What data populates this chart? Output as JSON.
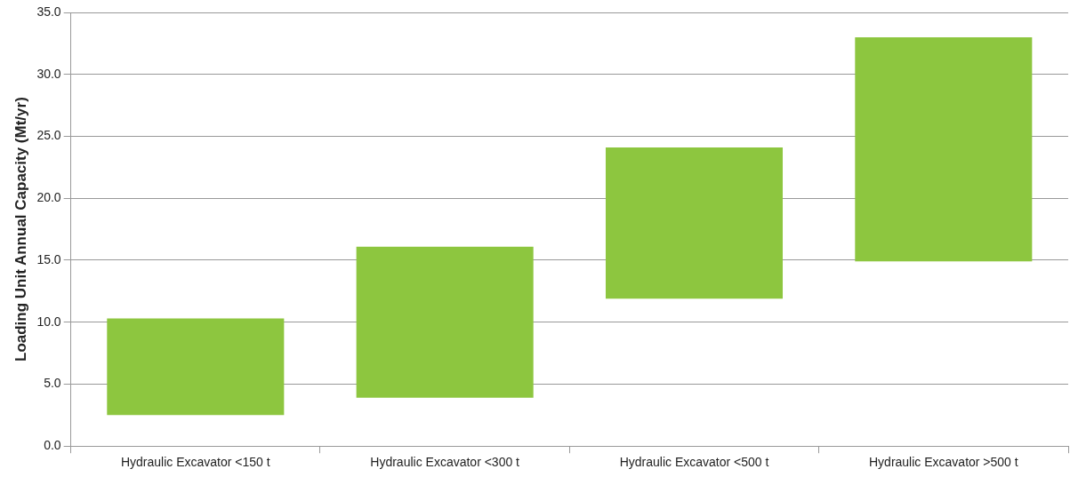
{
  "chart_data": {
    "type": "bar",
    "ylabel": "Loading Unit Annual Capacity (Mt/yr)",
    "categories": [
      "Hydraulic Excavator <150 t",
      "Hydraulic Excavator <300 t",
      "Hydraulic Excavator <500 t",
      "Hydraulic Excavator >500 t"
    ],
    "base": [
      2.5,
      3.9,
      11.9,
      14.9
    ],
    "values": [
      7.8,
      12.2,
      12.2,
      18.1
    ],
    "color": "#8dc63f",
    "ylim": [
      0,
      35
    ],
    "yticks": [
      {
        "value": 0,
        "label": "0.0"
      },
      {
        "value": 5,
        "label": "5.0"
      },
      {
        "value": 10,
        "label": "10.0"
      },
      {
        "value": 15,
        "label": "15.0"
      },
      {
        "value": 20,
        "label": "20.0"
      },
      {
        "value": 25,
        "label": "25.0"
      },
      {
        "value": 30,
        "label": "30.0"
      },
      {
        "value": 35,
        "label": "35.0"
      }
    ],
    "grid": "y"
  }
}
